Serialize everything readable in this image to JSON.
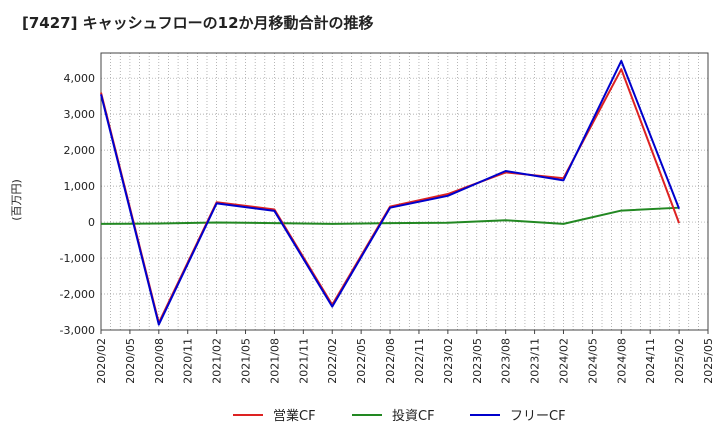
{
  "chart_data": {
    "type": "line",
    "title": "[7427]  キャッシュフローの12か月移動合計の推移",
    "ylabel": "(百万円)",
    "xlabel": "",
    "ylim": [
      -3000,
      4700
    ],
    "yticks": [
      -3000,
      -2000,
      -1000,
      0,
      1000,
      2000,
      3000,
      4000
    ],
    "ytick_labels": [
      "-3,000",
      "-2,000",
      "-1,000",
      "0",
      "1,000",
      "2,000",
      "3,000",
      "4,000"
    ],
    "xticks": [
      "2020/02",
      "2020/05",
      "2020/08",
      "2020/11",
      "2021/02",
      "2021/05",
      "2021/08",
      "2021/11",
      "2022/02",
      "2022/05",
      "2022/08",
      "2022/11",
      "2023/02",
      "2023/05",
      "2023/08",
      "2023/11",
      "2024/02",
      "2024/05",
      "2024/08",
      "2024/11",
      "2025/02",
      "2025/05"
    ],
    "x": [
      "2020/02",
      "2020/08",
      "2021/02",
      "2021/08",
      "2022/02",
      "2022/08",
      "2023/02",
      "2023/08",
      "2024/02",
      "2024/08",
      "2025/02"
    ],
    "series": [
      {
        "name": "営業CF",
        "color": "#dd2222",
        "values": [
          3600,
          -2800,
          550,
          350,
          -2300,
          430,
          780,
          1380,
          1220,
          4250,
          -30
        ]
      },
      {
        "name": "投資CF",
        "color": "#228822",
        "values": [
          -50,
          -40,
          -10,
          -30,
          -50,
          -30,
          -20,
          50,
          -50,
          320,
          400
        ]
      },
      {
        "name": "フリーCF",
        "color": "#0000cc",
        "values": [
          3550,
          -2850,
          520,
          310,
          -2350,
          400,
          730,
          1420,
          1160,
          4480,
          370
        ]
      }
    ],
    "grid": true,
    "legend_position": "bottom"
  }
}
